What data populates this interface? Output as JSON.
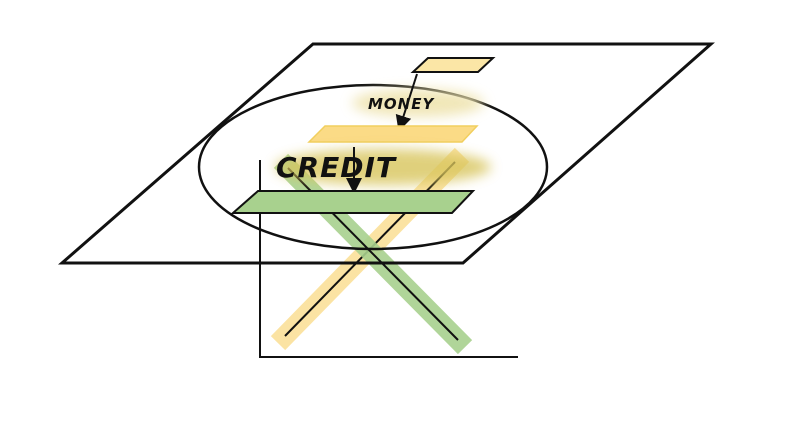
{
  "diagram": {
    "labels": {
      "money": "MONEY",
      "credit": "CREDIT"
    },
    "colors": {
      "outline": "#111111",
      "yellow_bar": "#fbe6a6",
      "yellow_bar_stroke": "#f1cf5e",
      "green_bar": "#a8d18e",
      "green_bar_stroke": "#7fb865",
      "glow": "#e8d88a",
      "background": "#ffffff"
    },
    "icons": {
      "arrow_money": "arrow-down-left",
      "arrow_credit": "arrow-down"
    }
  }
}
